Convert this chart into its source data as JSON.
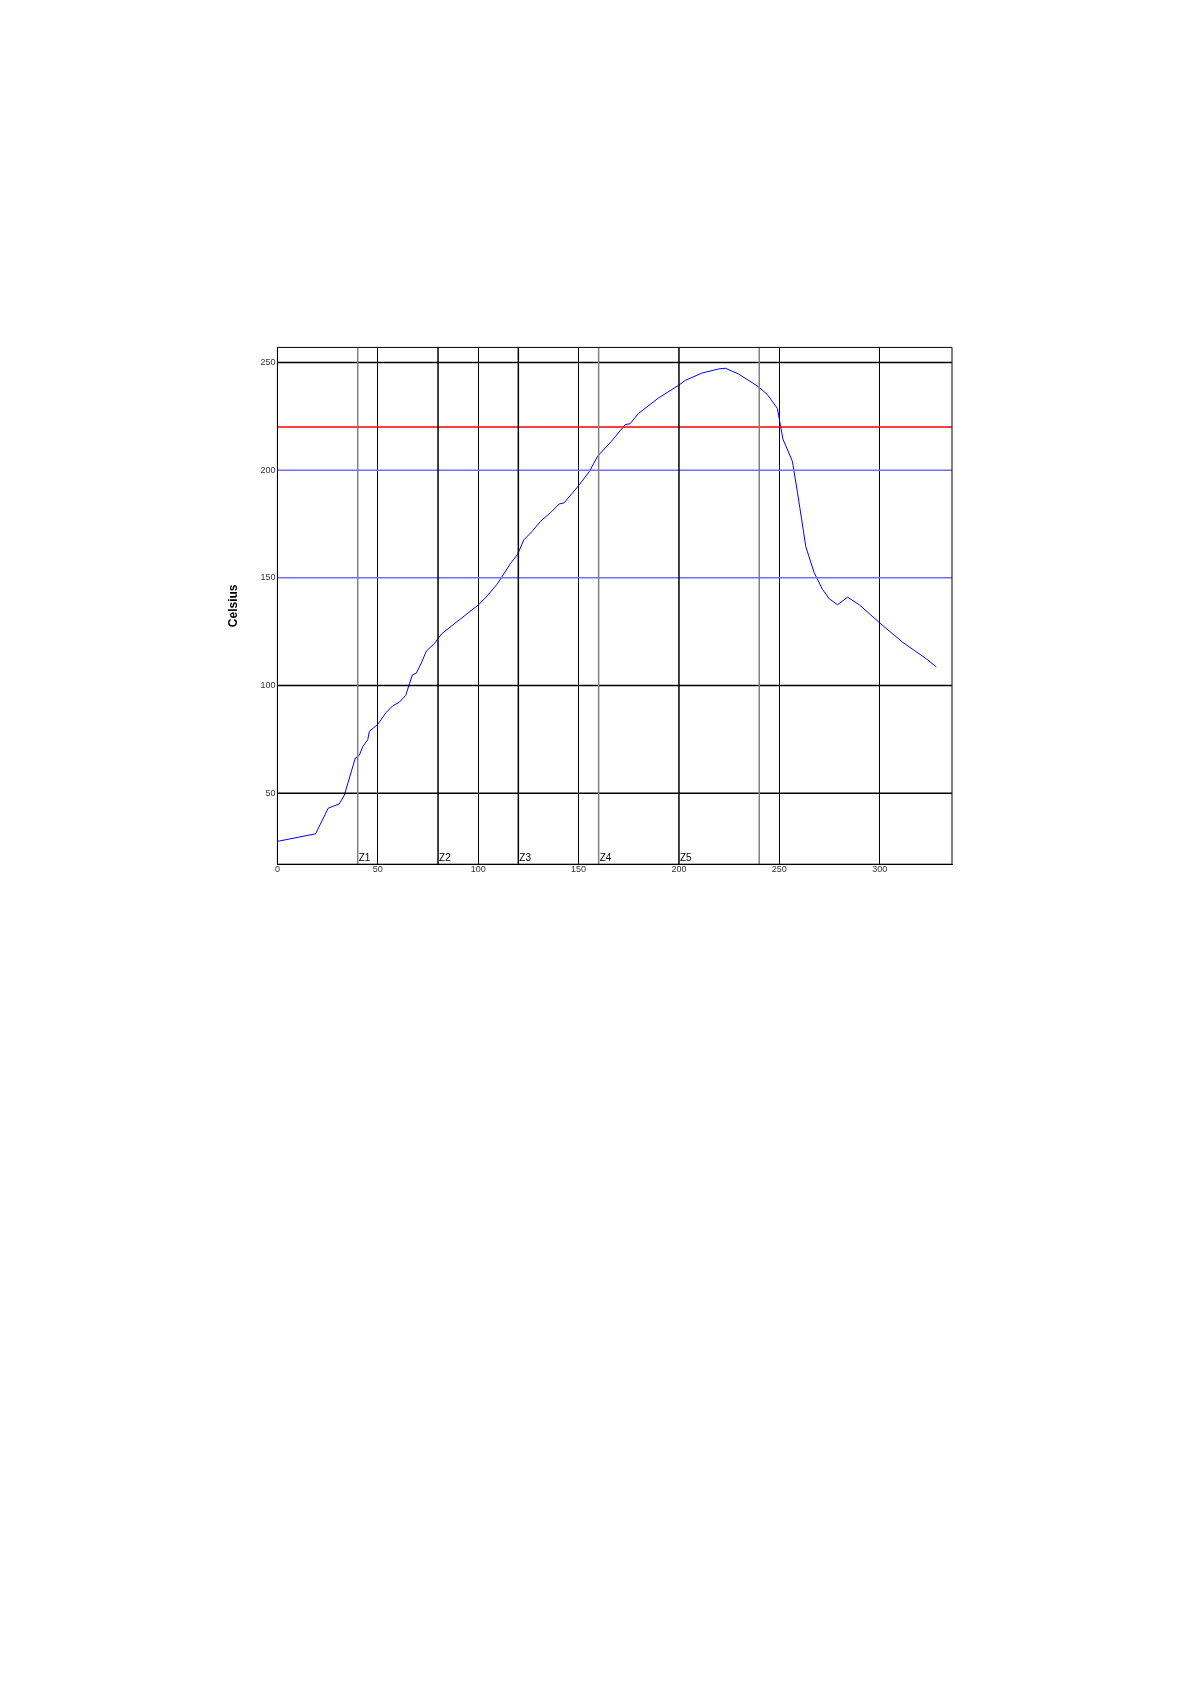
{
  "chart_data": {
    "type": "line",
    "ylabel": "Celsius",
    "x": [
      0,
      19,
      25.3,
      30.8,
      33.3,
      38.8,
      40.8,
      42.5,
      45,
      45.8,
      50,
      54.2,
      57.5,
      60.7,
      63.9,
      67.2,
      69.2,
      71.7,
      74.2,
      78.4,
      81.8,
      89.3,
      100.2,
      103.5,
      109.4,
      116,
      119.7,
      122.7,
      126.9,
      131.1,
      136.1,
      140.3,
      142.8,
      149.5,
      155.4,
      159.5,
      166.2,
      173.2,
      175.7,
      179.8,
      189.8,
      199.8,
      203.2,
      211.5,
      219.8,
      223.2,
      229.8,
      239.8,
      244,
      249,
      251.8,
      256.5,
      259,
      263.2,
      267.3,
      271.5,
      274.8,
      279,
      284,
      289.8,
      299.8,
      311.5,
      323.2,
      328.2
    ],
    "series": [
      {
        "color": "#0000ff",
        "values": [
          27.6,
          31.1,
          43,
          45,
          49,
          66.3,
          67.6,
          71.6,
          74.8,
          78.7,
          82,
          87.5,
          90.6,
          92.2,
          95.4,
          104.9,
          105.7,
          110.5,
          116,
          119.7,
          124,
          129.5,
          137.5,
          140.6,
          147,
          156.5,
          161,
          167.6,
          171.6,
          176.3,
          180.3,
          184.3,
          184.8,
          192.2,
          199.4,
          206.5,
          213.2,
          221.1,
          221.6,
          226.3,
          233.5,
          239.4,
          241.7,
          245.1,
          247,
          247.3,
          244.6,
          238.6,
          235.1,
          228.7,
          214.4,
          204.1,
          189.8,
          164.4,
          152.5,
          144.6,
          140.3,
          137.5,
          141,
          137.5,
          129.2,
          120,
          112.4,
          108.6
        ]
      }
    ],
    "xlim": [
      0,
      336
    ],
    "xticks": [
      0,
      50,
      100,
      150,
      200,
      250,
      300
    ],
    "ylim": [
      17,
      257
    ],
    "yticks": [
      50,
      100,
      150,
      200,
      250
    ],
    "grid": "x",
    "legend": false,
    "marker": "none",
    "line_style": "solid",
    "ref_lines": [
      {
        "axis": "y",
        "value": 250,
        "color": "#000000"
      },
      {
        "axis": "y",
        "value": 100,
        "color": "#000000"
      },
      {
        "axis": "y",
        "value": 50,
        "color": "#000000"
      },
      {
        "axis": "y",
        "value": 220,
        "color": "#ff0000"
      },
      {
        "axis": "y",
        "value": 200,
        "color": "#7070ff"
      },
      {
        "axis": "y",
        "value": 150,
        "color": "#7070ff"
      },
      {
        "axis": "x",
        "value": 40,
        "label": "Z1",
        "color": "#808080"
      },
      {
        "axis": "x",
        "value": 80,
        "label": "Z2",
        "color": "#000000"
      },
      {
        "axis": "x",
        "value": 120,
        "label": "Z3",
        "color": "#000000"
      },
      {
        "axis": "x",
        "value": 160,
        "label": "Z4",
        "color": "#808080"
      },
      {
        "axis": "x",
        "value": 200,
        "label": "Z5",
        "color": "#000000"
      },
      {
        "axis": "x",
        "value": 240,
        "color": "#808080"
      }
    ]
  }
}
